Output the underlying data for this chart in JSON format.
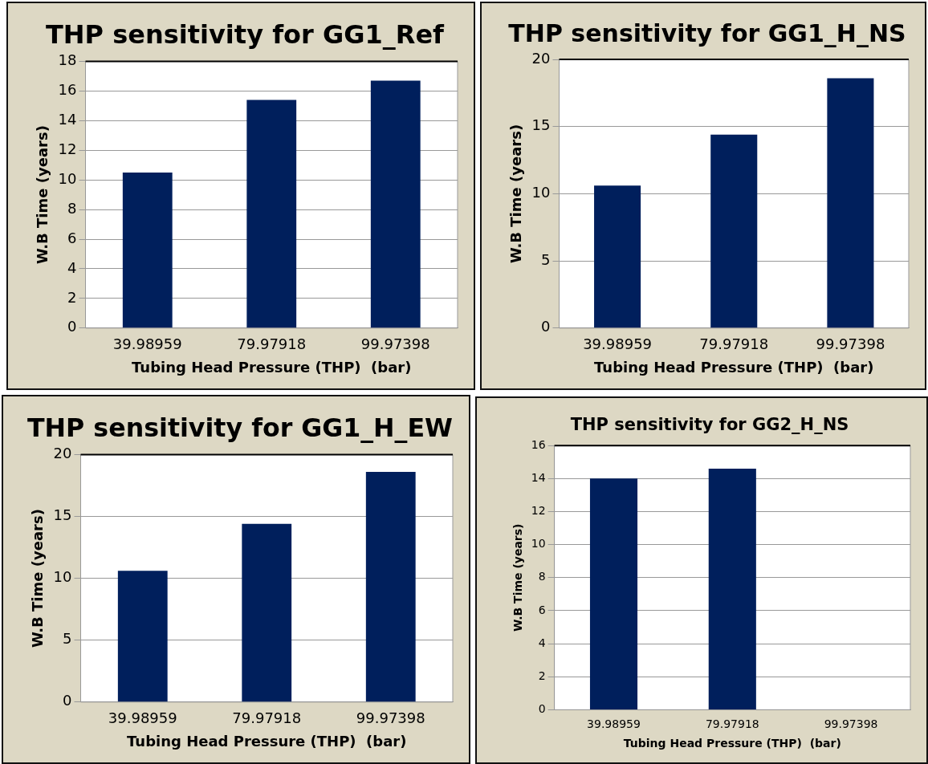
{
  "chart_data": [
    {
      "type": "bar",
      "title": "THP sensitivity for GG1_Ref",
      "xlabel": "Tubing Head Pressure (THP)  (bar)",
      "ylabel": "W.B Time (years)",
      "categories": [
        "39.98959",
        "79.97918",
        "99.97398"
      ],
      "values": [
        10.5,
        15.4,
        16.7
      ],
      "color": "#001f5c",
      "ylim": [
        0,
        18
      ],
      "yticks": [
        0,
        2,
        4,
        6,
        8,
        10,
        12,
        14,
        16,
        18
      ],
      "grid": "y",
      "legend": false
    },
    {
      "type": "bar",
      "title": "THP sensitivity for GG1_H_NS",
      "xlabel": "Tubing Head Pressure (THP)  (bar)",
      "ylabel": "W.B Time (years)",
      "categories": [
        "39.98959",
        "79.97918",
        "99.97398"
      ],
      "values": [
        10.6,
        14.4,
        18.6
      ],
      "color": "#001f5c",
      "ylim": [
        0,
        20
      ],
      "yticks": [
        0,
        5,
        10,
        15,
        20
      ],
      "grid": "y",
      "legend": false
    },
    {
      "type": "bar",
      "title": "THP sensitivity for GG1_H_EW",
      "xlabel": "Tubing Head Pressure (THP)  (bar)",
      "ylabel": "W.B Time (years)",
      "categories": [
        "39.98959",
        "79.97918",
        "99.97398"
      ],
      "values": [
        10.6,
        14.4,
        18.6
      ],
      "color": "#001f5c",
      "ylim": [
        0,
        20
      ],
      "yticks": [
        0,
        5,
        10,
        15,
        20
      ],
      "grid": "y",
      "legend": false
    },
    {
      "type": "bar",
      "title": "THP sensitivity for GG2_H_NS",
      "xlabel": "Tubing Head Pressure (THP)  (bar)",
      "ylabel": "W.B Time (years)",
      "categories": [
        "39.98959",
        "79.97918",
        "99.97398"
      ],
      "values": [
        14.0,
        14.6,
        null
      ],
      "color": "#001f5c",
      "ylim": [
        0,
        16
      ],
      "yticks": [
        0,
        2,
        4,
        6,
        8,
        10,
        12,
        14,
        16
      ],
      "grid": "y",
      "legend": false
    }
  ]
}
